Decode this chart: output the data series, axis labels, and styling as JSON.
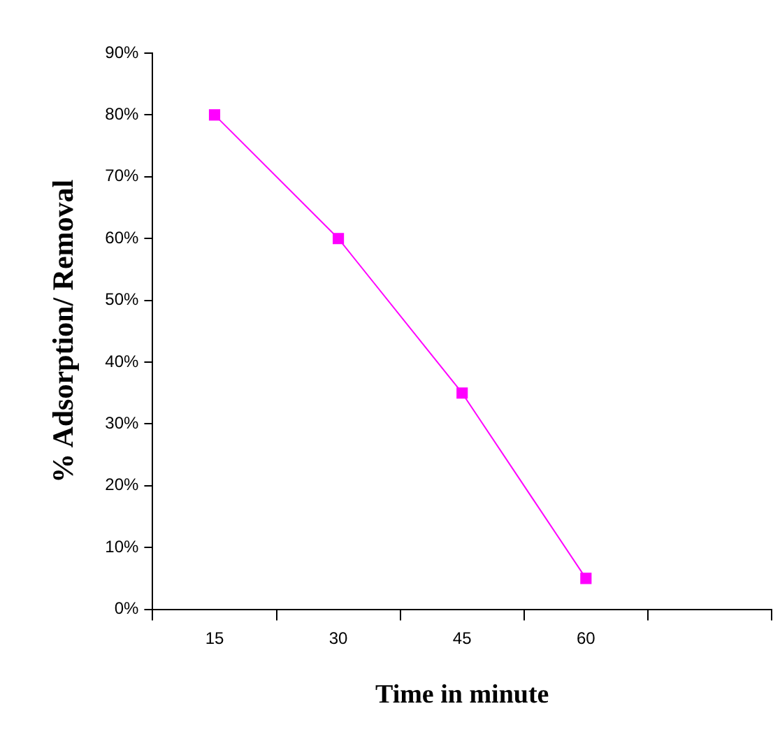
{
  "chart_data": {
    "type": "line",
    "xlabel": "Time in minute",
    "ylabel": "% Adsorption/ Removal",
    "categories": [
      "15",
      "30",
      "45",
      "60",
      null
    ],
    "series": [
      {
        "color": "#ff00ff",
        "values": [
          80,
          60,
          35,
          5,
          null
        ]
      }
    ],
    "ylim": [
      0,
      90
    ],
    "yticks": [
      {
        "value": 0,
        "label": "0%"
      },
      {
        "value": 10,
        "label": "10%"
      },
      {
        "value": 20,
        "label": "20%"
      },
      {
        "value": 30,
        "label": "30%"
      },
      {
        "value": 40,
        "label": "40%"
      },
      {
        "value": 50,
        "label": "50%"
      },
      {
        "value": 60,
        "label": "60%"
      },
      {
        "value": 70,
        "label": "70%"
      },
      {
        "value": 80,
        "label": "80%"
      },
      {
        "value": 90,
        "label": "90%"
      }
    ],
    "marker": "square",
    "line_style": "solid",
    "legend": false
  }
}
